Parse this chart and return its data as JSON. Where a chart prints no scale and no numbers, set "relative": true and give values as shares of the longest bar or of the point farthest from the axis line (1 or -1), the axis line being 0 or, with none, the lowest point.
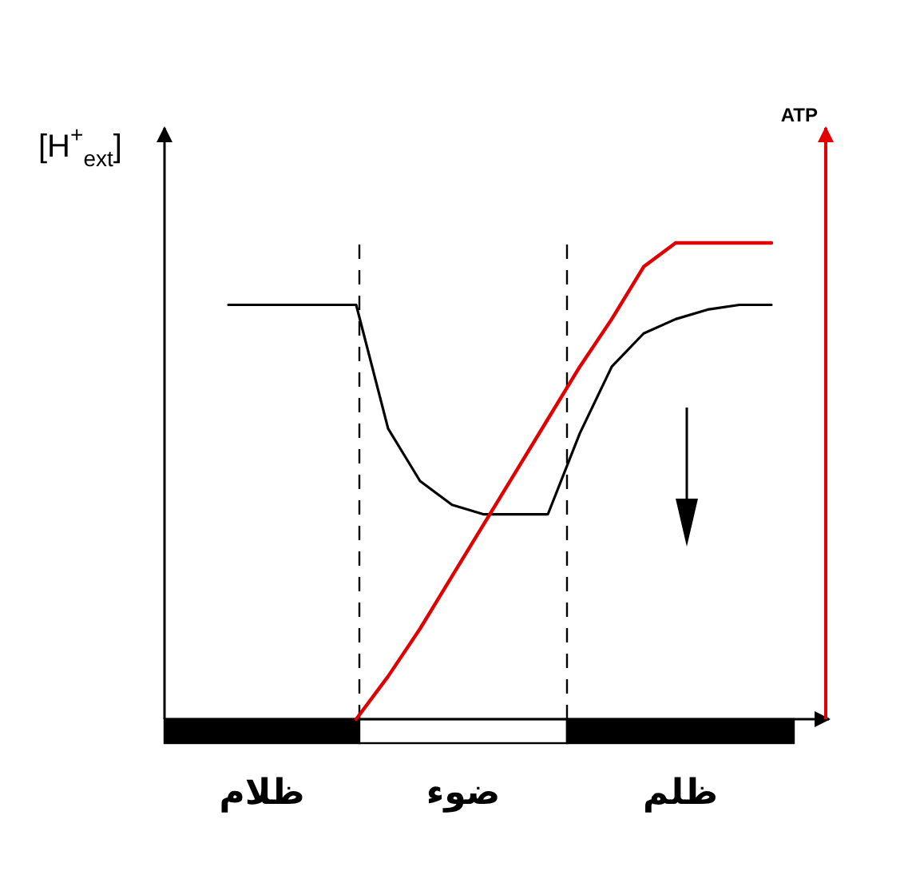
{
  "chart_data": {
    "type": "line",
    "relative": true,
    "ylabel": "[H$^{+}$$_{ext}$]",
    "marker": "none",
    "categories": [
      null,
      null,
      null,
      null,
      null,
      null,
      null,
      null,
      null,
      null,
      null,
      null,
      null,
      null,
      null,
      null,
      null,
      null,
      null,
      null
    ],
    "series": [
      {
        "color": "#000000",
        "values": [
          null,
          null,
          0.87,
          0.87,
          0.87,
          0.87,
          0.87,
          0.61,
          0.5,
          0.45,
          0.43,
          0.43,
          0.43,
          0.6,
          0.74,
          0.81,
          0.84,
          0.86,
          0.87,
          0.87
        ]
      },
      {
        "color": "#e00000",
        "values": [
          null,
          null,
          null,
          null,
          null,
          null,
          0.0,
          0.09,
          0.19,
          0.3,
          0.41,
          0.52,
          0.63,
          0.74,
          0.84,
          0.95,
          1.0,
          1.0,
          1.0,
          1.0
        ]
      }
    ],
    "annotations": [
      "ظلام",
      "ضوء",
      "ظلم",
      "ATP"
    ]
  }
}
